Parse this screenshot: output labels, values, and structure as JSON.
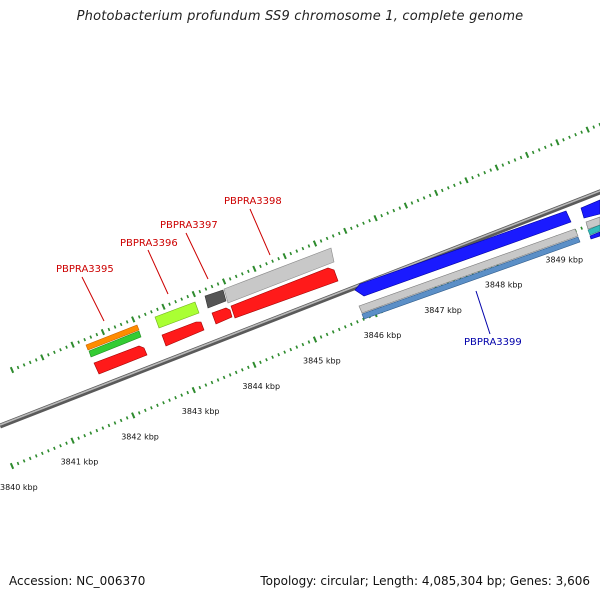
{
  "title": "Photobacterium profundum SS9 chromosome 1, complete genome",
  "footer": {
    "accession": "Accession: NC_006370",
    "summary": "Topology: circular; Length: 4,085,304 bp; Genes: 3,606"
  },
  "ticks": [
    {
      "label": "3840 kbp"
    },
    {
      "label": "3841 kbp"
    },
    {
      "label": "3842 kbp"
    },
    {
      "label": "3843 kbp"
    },
    {
      "label": "3844 kbp"
    },
    {
      "label": "3845 kbp"
    },
    {
      "label": "3846 kbp"
    },
    {
      "label": "3847 kbp"
    },
    {
      "label": "3848 kbp"
    },
    {
      "label": "3849 kbp"
    }
  ],
  "gene_labels": [
    {
      "text": "PBPRA3395",
      "color": "#cc0000"
    },
    {
      "text": "PBPRA3396",
      "color": "#cc0000"
    },
    {
      "text": "PBPRA3397",
      "color": "#cc0000"
    },
    {
      "text": "PBPRA3398",
      "color": "#cc0000"
    },
    {
      "text": "PBPRA3399",
      "color": "#0000aa"
    }
  ],
  "colors": {
    "backbone": "#8a8a8a",
    "tick": "#2e8b2e",
    "cds_red": "#ff1a1a",
    "cds_blue": "#1a1aff",
    "orange": "#ff8c00",
    "green": "#33cc33",
    "lime": "#aaff33",
    "grey_light": "#c8c8c8",
    "grey_dark": "#555555",
    "steel_blue": "#5b8fc7"
  }
}
